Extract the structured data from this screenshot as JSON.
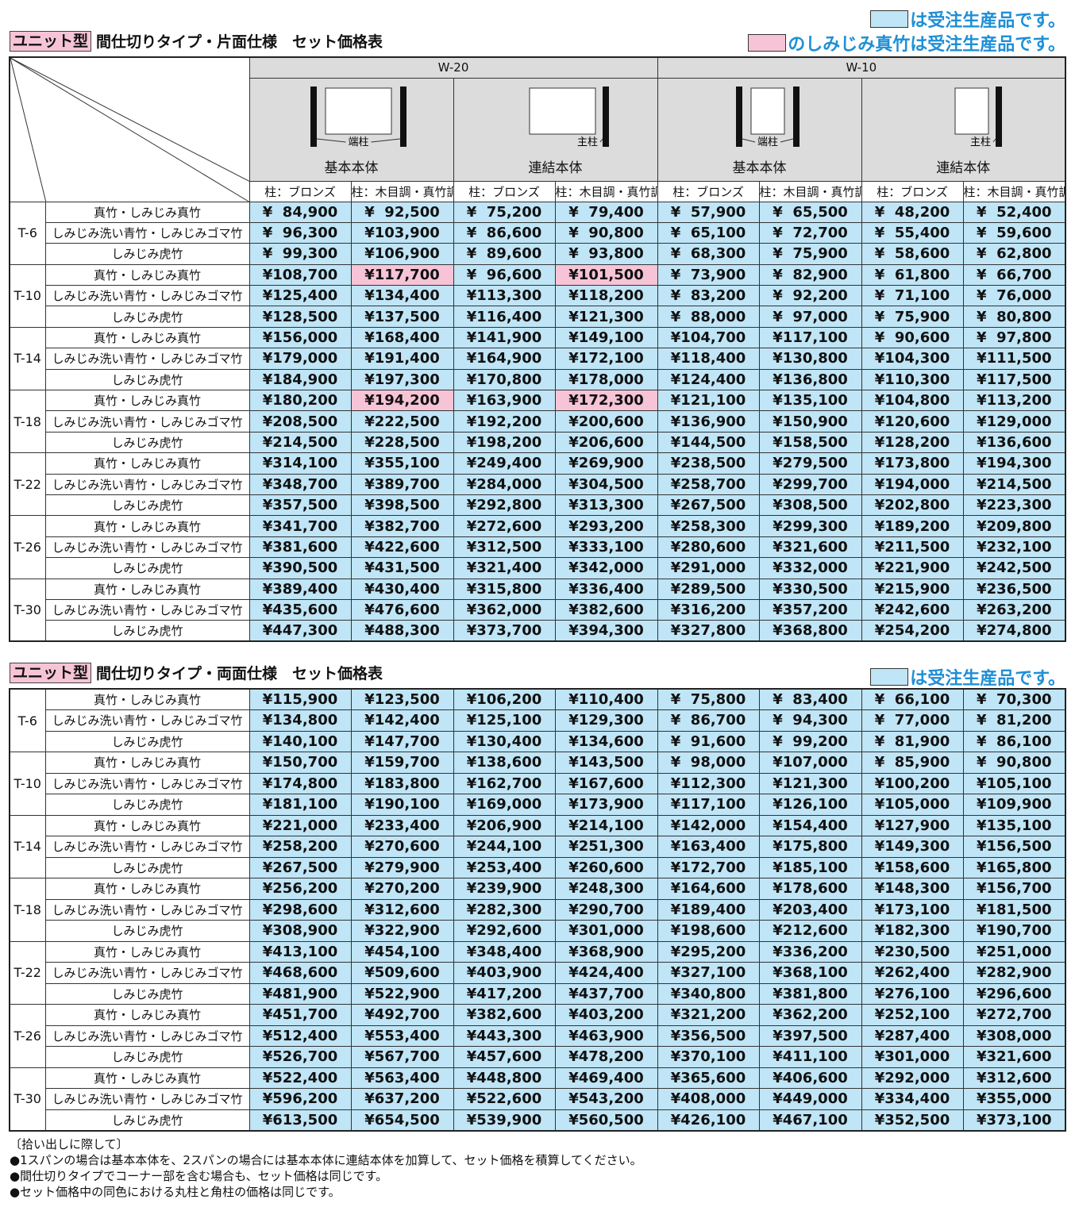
{
  "top": {
    "legend_blue": "は受注生産品です。",
    "legend_pink": "のしみじみ真竹は受注生産品です。"
  },
  "table1": {
    "badge": "ユニット型",
    "title": "間仕切りタイプ・片面仕様　セット価格表",
    "header": {
      "widths": [
        {
          "label": "W-20",
          "parts": [
            {
              "post": "端柱",
              "caption": "基本本体"
            },
            {
              "post": "主柱",
              "caption": "連結本体"
            }
          ]
        },
        {
          "label": "W-10",
          "parts": [
            {
              "post": "端柱",
              "caption": "基本本体"
            },
            {
              "post": "主柱",
              "caption": "連結本体"
            }
          ]
        }
      ],
      "subheaders": [
        "柱：ブロンズ",
        "柱：木目調・真竹調",
        "柱：ブロンズ",
        "柱：木目調・真竹調",
        "柱：ブロンズ",
        "柱：木目調・真竹調",
        "柱：ブロンズ",
        "柱：木目調・真竹調"
      ]
    },
    "groups": [
      {
        "label": "T-6",
        "rows": [
          {
            "name": "真竹・しみじみ真竹",
            "cells": [
              "¥  84,900",
              "¥  92,500",
              "¥  75,200",
              "¥  79,400",
              "¥  57,900",
              "¥  65,500",
              "¥  48,200",
              "¥  52,400"
            ]
          },
          {
            "name": "しみじみ洗い青竹・しみじみゴマ竹",
            "cells": [
              "¥  96,300",
              "¥103,900",
              "¥  86,600",
              "¥  90,800",
              "¥  65,100",
              "¥  72,700",
              "¥  55,400",
              "¥  59,600"
            ]
          },
          {
            "name": "しみじみ虎竹",
            "cells": [
              "¥  99,300",
              "¥106,900",
              "¥  89,600",
              "¥  93,800",
              "¥  68,300",
              "¥  75,900",
              "¥  58,600",
              "¥  62,800"
            ]
          }
        ]
      },
      {
        "label": "T-10",
        "rows": [
          {
            "name": "真竹・しみじみ真竹",
            "cells": [
              "¥108,700",
              {
                "text": "¥117,700",
                "color": "pink"
              },
              "¥  96,600",
              {
                "text": "¥101,500",
                "color": "pink"
              },
              "¥  73,900",
              "¥  82,900",
              "¥  61,800",
              "¥  66,700"
            ]
          },
          {
            "name": "しみじみ洗い青竹・しみじみゴマ竹",
            "cells": [
              "¥125,400",
              "¥134,400",
              "¥113,300",
              "¥118,200",
              "¥  83,200",
              "¥  92,200",
              "¥  71,100",
              "¥  76,000"
            ]
          },
          {
            "name": "しみじみ虎竹",
            "cells": [
              "¥128,500",
              "¥137,500",
              "¥116,400",
              "¥121,300",
              "¥  88,000",
              "¥  97,000",
              "¥  75,900",
              "¥  80,800"
            ]
          }
        ]
      },
      {
        "label": "T-14",
        "rows": [
          {
            "name": "真竹・しみじみ真竹",
            "cells": [
              "¥156,000",
              "¥168,400",
              "¥141,900",
              "¥149,100",
              "¥104,700",
              "¥117,100",
              "¥  90,600",
              "¥  97,800"
            ]
          },
          {
            "name": "しみじみ洗い青竹・しみじみゴマ竹",
            "cells": [
              "¥179,000",
              "¥191,400",
              "¥164,900",
              "¥172,100",
              "¥118,400",
              "¥130,800",
              "¥104,300",
              "¥111,500"
            ]
          },
          {
            "name": "しみじみ虎竹",
            "cells": [
              "¥184,900",
              "¥197,300",
              "¥170,800",
              "¥178,000",
              "¥124,400",
              "¥136,800",
              "¥110,300",
              "¥117,500"
            ]
          }
        ]
      },
      {
        "label": "T-18",
        "rows": [
          {
            "name": "真竹・しみじみ真竹",
            "cells": [
              "¥180,200",
              {
                "text": "¥194,200",
                "color": "pink"
              },
              "¥163,900",
              {
                "text": "¥172,300",
                "color": "pink"
              },
              "¥121,100",
              "¥135,100",
              "¥104,800",
              "¥113,200"
            ]
          },
          {
            "name": "しみじみ洗い青竹・しみじみゴマ竹",
            "cells": [
              "¥208,500",
              "¥222,500",
              "¥192,200",
              "¥200,600",
              "¥136,900",
              "¥150,900",
              "¥120,600",
              "¥129,000"
            ]
          },
          {
            "name": "しみじみ虎竹",
            "cells": [
              "¥214,500",
              "¥228,500",
              "¥198,200",
              "¥206,600",
              "¥144,500",
              "¥158,500",
              "¥128,200",
              "¥136,600"
            ]
          }
        ]
      },
      {
        "label": "T-22",
        "rows": [
          {
            "name": "真竹・しみじみ真竹",
            "cells": [
              "¥314,100",
              "¥355,100",
              "¥249,400",
              "¥269,900",
              "¥238,500",
              "¥279,500",
              "¥173,800",
              "¥194,300"
            ]
          },
          {
            "name": "しみじみ洗い青竹・しみじみゴマ竹",
            "cells": [
              "¥348,700",
              "¥389,700",
              "¥284,000",
              "¥304,500",
              "¥258,700",
              "¥299,700",
              "¥194,000",
              "¥214,500"
            ]
          },
          {
            "name": "しみじみ虎竹",
            "cells": [
              "¥357,500",
              "¥398,500",
              "¥292,800",
              "¥313,300",
              "¥267,500",
              "¥308,500",
              "¥202,800",
              "¥223,300"
            ]
          }
        ]
      },
      {
        "label": "T-26",
        "rows": [
          {
            "name": "真竹・しみじみ真竹",
            "cells": [
              "¥341,700",
              "¥382,700",
              "¥272,600",
              "¥293,200",
              "¥258,300",
              "¥299,300",
              "¥189,200",
              "¥209,800"
            ]
          },
          {
            "name": "しみじみ洗い青竹・しみじみゴマ竹",
            "cells": [
              "¥381,600",
              "¥422,600",
              "¥312,500",
              "¥333,100",
              "¥280,600",
              "¥321,600",
              "¥211,500",
              "¥232,100"
            ]
          },
          {
            "name": "しみじみ虎竹",
            "cells": [
              "¥390,500",
              "¥431,500",
              "¥321,400",
              "¥342,000",
              "¥291,000",
              "¥332,000",
              "¥221,900",
              "¥242,500"
            ]
          }
        ]
      },
      {
        "label": "T-30",
        "rows": [
          {
            "name": "真竹・しみじみ真竹",
            "cells": [
              "¥389,400",
              "¥430,400",
              "¥315,800",
              "¥336,400",
              "¥289,500",
              "¥330,500",
              "¥215,900",
              "¥236,500"
            ]
          },
          {
            "name": "しみじみ洗い青竹・しみじみゴマ竹",
            "cells": [
              "¥435,600",
              "¥476,600",
              "¥362,000",
              "¥382,600",
              "¥316,200",
              "¥357,200",
              "¥242,600",
              "¥263,200"
            ]
          },
          {
            "name": "しみじみ虎竹",
            "cells": [
              "¥447,300",
              "¥488,300",
              "¥373,700",
              "¥394,300",
              "¥327,800",
              "¥368,800",
              "¥254,200",
              "¥274,800"
            ]
          }
        ]
      }
    ]
  },
  "table2": {
    "badge": "ユニット型",
    "title": "間仕切りタイプ・両面仕様　セット価格表",
    "legend_blue": "は受注生産品です。",
    "groups": [
      {
        "label": "T-6",
        "rows": [
          {
            "name": "真竹・しみじみ真竹",
            "cells": [
              "¥115,900",
              "¥123,500",
              "¥106,200",
              "¥110,400",
              "¥  75,800",
              "¥  83,400",
              "¥  66,100",
              "¥  70,300"
            ]
          },
          {
            "name": "しみじみ洗い青竹・しみじみゴマ竹",
            "cells": [
              "¥134,800",
              "¥142,400",
              "¥125,100",
              "¥129,300",
              "¥  86,700",
              "¥  94,300",
              "¥  77,000",
              "¥  81,200"
            ]
          },
          {
            "name": "しみじみ虎竹",
            "cells": [
              "¥140,100",
              "¥147,700",
              "¥130,400",
              "¥134,600",
              "¥  91,600",
              "¥  99,200",
              "¥  81,900",
              "¥  86,100"
            ]
          }
        ]
      },
      {
        "label": "T-10",
        "rows": [
          {
            "name": "真竹・しみじみ真竹",
            "cells": [
              "¥150,700",
              "¥159,700",
              "¥138,600",
              "¥143,500",
              "¥  98,000",
              "¥107,000",
              "¥  85,900",
              "¥  90,800"
            ]
          },
          {
            "name": "しみじみ洗い青竹・しみじみゴマ竹",
            "cells": [
              "¥174,800",
              "¥183,800",
              "¥162,700",
              "¥167,600",
              "¥112,300",
              "¥121,300",
              "¥100,200",
              "¥105,100"
            ]
          },
          {
            "name": "しみじみ虎竹",
            "cells": [
              "¥181,100",
              "¥190,100",
              "¥169,000",
              "¥173,900",
              "¥117,100",
              "¥126,100",
              "¥105,000",
              "¥109,900"
            ]
          }
        ]
      },
      {
        "label": "T-14",
        "rows": [
          {
            "name": "真竹・しみじみ真竹",
            "cells": [
              "¥221,000",
              "¥233,400",
              "¥206,900",
              "¥214,100",
              "¥142,000",
              "¥154,400",
              "¥127,900",
              "¥135,100"
            ]
          },
          {
            "name": "しみじみ洗い青竹・しみじみゴマ竹",
            "cells": [
              "¥258,200",
              "¥270,600",
              "¥244,100",
              "¥251,300",
              "¥163,400",
              "¥175,800",
              "¥149,300",
              "¥156,500"
            ]
          },
          {
            "name": "しみじみ虎竹",
            "cells": [
              "¥267,500",
              "¥279,900",
              "¥253,400",
              "¥260,600",
              "¥172,700",
              "¥185,100",
              "¥158,600",
              "¥165,800"
            ]
          }
        ]
      },
      {
        "label": "T-18",
        "rows": [
          {
            "name": "真竹・しみじみ真竹",
            "cells": [
              "¥256,200",
              "¥270,200",
              "¥239,900",
              "¥248,300",
              "¥164,600",
              "¥178,600",
              "¥148,300",
              "¥156,700"
            ]
          },
          {
            "name": "しみじみ洗い青竹・しみじみゴマ竹",
            "cells": [
              "¥298,600",
              "¥312,600",
              "¥282,300",
              "¥290,700",
              "¥189,400",
              "¥203,400",
              "¥173,100",
              "¥181,500"
            ]
          },
          {
            "name": "しみじみ虎竹",
            "cells": [
              "¥308,900",
              "¥322,900",
              "¥292,600",
              "¥301,000",
              "¥198,600",
              "¥212,600",
              "¥182,300",
              "¥190,700"
            ]
          }
        ]
      },
      {
        "label": "T-22",
        "rows": [
          {
            "name": "真竹・しみじみ真竹",
            "cells": [
              "¥413,100",
              "¥454,100",
              "¥348,400",
              "¥368,900",
              "¥295,200",
              "¥336,200",
              "¥230,500",
              "¥251,000"
            ]
          },
          {
            "name": "しみじみ洗い青竹・しみじみゴマ竹",
            "cells": [
              "¥468,600",
              "¥509,600",
              "¥403,900",
              "¥424,400",
              "¥327,100",
              "¥368,100",
              "¥262,400",
              "¥282,900"
            ]
          },
          {
            "name": "しみじみ虎竹",
            "cells": [
              "¥481,900",
              "¥522,900",
              "¥417,200",
              "¥437,700",
              "¥340,800",
              "¥381,800",
              "¥276,100",
              "¥296,600"
            ]
          }
        ]
      },
      {
        "label": "T-26",
        "rows": [
          {
            "name": "真竹・しみじみ真竹",
            "cells": [
              "¥451,700",
              "¥492,700",
              "¥382,600",
              "¥403,200",
              "¥321,200",
              "¥362,200",
              "¥252,100",
              "¥272,700"
            ]
          },
          {
            "name": "しみじみ洗い青竹・しみじみゴマ竹",
            "cells": [
              "¥512,400",
              "¥553,400",
              "¥443,300",
              "¥463,900",
              "¥356,500",
              "¥397,500",
              "¥287,400",
              "¥308,000"
            ]
          },
          {
            "name": "しみじみ虎竹",
            "cells": [
              "¥526,700",
              "¥567,700",
              "¥457,600",
              "¥478,200",
              "¥370,100",
              "¥411,100",
              "¥301,000",
              "¥321,600"
            ]
          }
        ]
      },
      {
        "label": "T-30",
        "rows": [
          {
            "name": "真竹・しみじみ真竹",
            "cells": [
              "¥522,400",
              "¥563,400",
              "¥448,800",
              "¥469,400",
              "¥365,600",
              "¥406,600",
              "¥292,000",
              "¥312,600"
            ]
          },
          {
            "name": "しみじみ洗い青竹・しみじみゴマ竹",
            "cells": [
              "¥596,200",
              "¥637,200",
              "¥522,600",
              "¥543,200",
              "¥408,000",
              "¥449,000",
              "¥334,400",
              "¥355,000"
            ]
          },
          {
            "name": "しみじみ虎竹",
            "cells": [
              "¥613,500",
              "¥654,500",
              "¥539,900",
              "¥560,500",
              "¥426,100",
              "¥467,100",
              "¥352,500",
              "¥373,100"
            ]
          }
        ]
      }
    ]
  },
  "notes": {
    "heading": "〔拾い出しに際して〕",
    "items": [
      "●1スパンの場合は基本本体を、2スパンの場合には基本本体に連結本体を加算して、セット価格を積算してください。",
      "●間仕切りタイプでコーナー部を含む場合も、セット価格は同じです。",
      "●セット価格中の同色における丸柱と角柱の価格は同じです。"
    ]
  }
}
